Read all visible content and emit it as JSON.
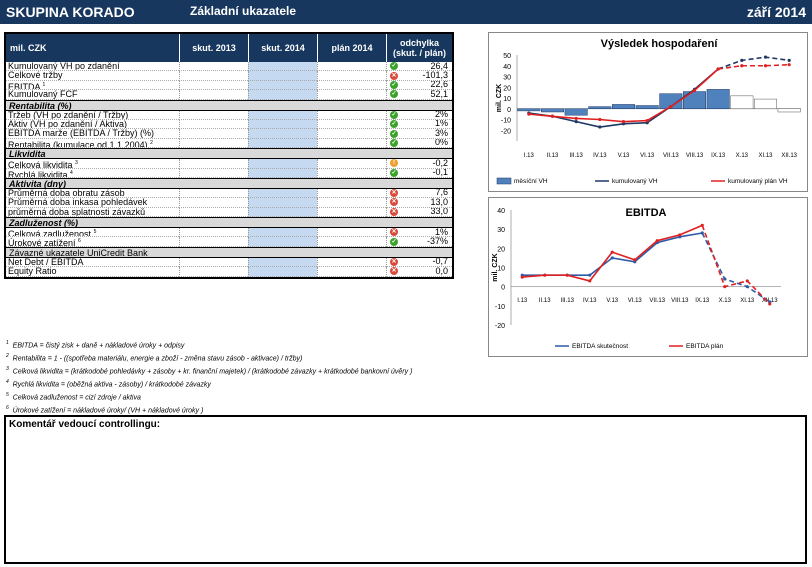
{
  "banner": {
    "company": "SKUPINA KORADO",
    "subtitle": "Základní ukazatele",
    "date": "září 2014"
  },
  "table": {
    "headers": [
      "mil. CZK",
      "skut. 2013",
      "skut. 2014",
      "plán 2014",
      "odchylka (skut. / plán)"
    ],
    "sections": [
      {
        "title": "",
        "rows": [
          {
            "label": "Kumulovaný VH po zdanění",
            "sup": "",
            "status": "green",
            "value": "26,4"
          },
          {
            "label": "Celkové tržby",
            "sup": "",
            "status": "red",
            "value": "-101,3"
          },
          {
            "label": "EBITDA",
            "sup": "1",
            "status": "green",
            "value": "22,6"
          },
          {
            "label": "Kumulovaný FCF",
            "sup": "",
            "status": "green",
            "value": "52,1"
          }
        ]
      },
      {
        "title": "Rentabilita (%)",
        "rows": [
          {
            "label": "Tržeb (VH po zdanění / Tržby)",
            "sup": "",
            "status": "green",
            "value": "2%"
          },
          {
            "label": "Aktiv (VH po zdanění / Aktiva)",
            "sup": "",
            "status": "green",
            "value": "1%"
          },
          {
            "label": "EBITDA marže (EBITDA / Tržby) (%)",
            "sup": "",
            "status": "green",
            "value": "3%"
          },
          {
            "label": "Rentabilita  (kumulace od 1.1.2004)",
            "sup": "2",
            "status": "green",
            "value": "0%"
          }
        ]
      },
      {
        "title": "Likvidita",
        "rows": [
          {
            "label": "Celková likvidita",
            "sup": "3",
            "status": "orange",
            "value": "-0,2"
          },
          {
            "label": "Rychlá likvidita",
            "sup": "4",
            "status": "green",
            "value": "-0,1"
          }
        ]
      },
      {
        "title": "Aktivita (dny)",
        "rows": [
          {
            "label": "Průměrná doba obratu zásob",
            "sup": "",
            "status": "red",
            "value": "7,6"
          },
          {
            "label": "Průměrná doba inkasa pohledávek",
            "sup": "",
            "status": "red",
            "value": "13,0"
          },
          {
            "label": "průměrná doba splatnosti závazků",
            "sup": "",
            "status": "red",
            "value": "33,0"
          }
        ]
      },
      {
        "title": "Zadluženost (%)",
        "rows": [
          {
            "label": "Celková zadluženost",
            "sup": "5",
            "status": "red",
            "value": "1%"
          },
          {
            "label": "Úrokové zatížení",
            "sup": "6",
            "status": "green",
            "value": "-37%"
          }
        ]
      },
      {
        "title": "Závazné ukazatele UniCredit Bank",
        "plain": true,
        "rows": [
          {
            "label": "Net Debt / EBITDA",
            "sup": "",
            "status": "red",
            "value": "-0,7"
          },
          {
            "label": "Equity Ratio",
            "sup": "",
            "status": "red",
            "value": "0,0"
          }
        ]
      }
    ]
  },
  "footnotes": [
    {
      "n": "1",
      "text": "EBITDA = čistý zisk + daně + nákladové úroky + odpisy"
    },
    {
      "n": "2",
      "text": "Rentabilita = 1 - ((spotřeba materiálu, energie a zboží - změna stavu zásob - aktivace) / tržby)"
    },
    {
      "n": "3",
      "text": "Celková likvidita = (krátkodobé pohledávky + zásoby + kr. finanční majetek) / (krátkodobé závazky + krátkodobé bankovní úvěry )"
    },
    {
      "n": "4",
      "text": "Rychlá likvidita = (oběžná aktiva - zásoby) / krátkodobé závazky"
    },
    {
      "n": "5",
      "text": "Celková zadluženost = cizí zdroje / aktiva"
    },
    {
      "n": "6",
      "text": "Úrokové zatížení = nákladové úroky/ (VH + nákladové úroky )"
    }
  ],
  "comment": {
    "label": "Komentář vedoucí controllingu:"
  },
  "chart_data": [
    {
      "type": "bar",
      "title": "Výsledek hospodaření",
      "ylabel": "mil. CZK",
      "ylim": [
        -30,
        50
      ],
      "yticks": [
        -20,
        -10,
        0,
        10,
        20,
        30,
        40,
        50
      ],
      "categories": [
        "I.13",
        "II.13",
        "III.13",
        "IV.13",
        "V.13",
        "VI.13",
        "VII.13",
        "VIII.13",
        "IX.13",
        "X.13",
        "XI.13",
        "XII.13"
      ],
      "series": [
        {
          "name": "měsíční VH",
          "kind": "bar",
          "color": "#4f81bd",
          "values": [
            -2,
            -3,
            -6,
            2,
            4,
            3,
            14,
            16,
            18,
            12,
            9,
            -3
          ],
          "actual_count": 9
        },
        {
          "name": "kumulovaný VH",
          "kind": "line",
          "color": "#1f3864",
          "values": [
            -4,
            -7,
            -12,
            -17,
            -14,
            -13,
            2,
            18,
            37,
            45,
            48,
            45
          ],
          "actual_count": 9
        },
        {
          "name": "kumulovaný plán VH",
          "kind": "line",
          "color": "#e02020",
          "values": [
            -5,
            -7,
            -9,
            -10,
            -12,
            -11,
            2,
            17,
            37,
            40,
            40,
            41
          ],
          "actual_count": 9
        }
      ],
      "legend": "bottom"
    },
    {
      "type": "line",
      "title": "EBITDA",
      "ylabel": "mil. CZK",
      "ylim": [
        -20,
        40
      ],
      "yticks": [
        -20,
        -10,
        0,
        10,
        20,
        30,
        40
      ],
      "categories": [
        "I.13",
        "II.13",
        "III.13",
        "IV.13",
        "V.13",
        "VI.13",
        "VII.13",
        "VIII.13",
        "IX.13",
        "X.13",
        "XI.13",
        "XII.13"
      ],
      "series": [
        {
          "name": "EBITDA skutečnost",
          "color": "#2e5aa8",
          "values": [
            6,
            6,
            6,
            6,
            15,
            13,
            23,
            26,
            28,
            4,
            0,
            -8
          ],
          "actual_count": 9
        },
        {
          "name": "EBITDA plán",
          "color": "#e02020",
          "values": [
            5,
            6,
            6,
            3,
            18,
            14,
            24,
            27,
            32,
            0,
            3,
            -9
          ],
          "actual_count": 9
        }
      ],
      "legend": "bottom"
    }
  ]
}
